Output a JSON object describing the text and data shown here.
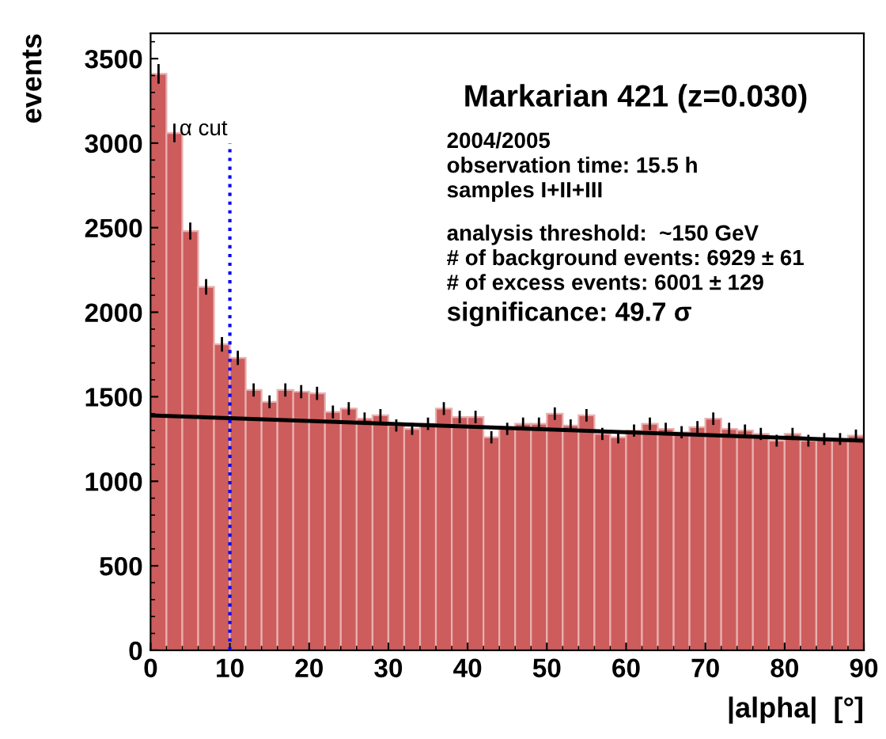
{
  "chart_data": {
    "type": "histogram",
    "title": "Markarian 421 (z=0.030)",
    "xlabel": "|alpha|  [°]",
    "ylabel": "events",
    "bins": [
      0,
      2,
      4,
      6,
      8,
      10,
      12,
      14,
      16,
      18,
      20,
      22,
      24,
      26,
      28,
      30,
      32,
      34,
      36,
      38,
      40,
      42,
      44,
      46,
      48,
      50,
      52,
      54,
      56,
      58,
      60,
      62,
      64,
      66,
      68,
      70,
      72,
      74,
      76,
      78,
      80,
      82,
      84,
      86,
      88,
      90
    ],
    "series": [
      {
        "color": "#cd5c5c",
        "values": [
          3410,
          3060,
          2480,
          2150,
          1810,
          1730,
          1540,
          1470,
          1540,
          1530,
          1520,
          1410,
          1430,
          1370,
          1390,
          1330,
          1310,
          1340,
          1430,
          1380,
          1380,
          1260,
          1310,
          1340,
          1340,
          1400,
          1330,
          1390,
          1280,
          1260,
          1300,
          1340,
          1310,
          1290,
          1320,
          1370,
          1310,
          1300,
          1280,
          1240,
          1280,
          1240,
          1250,
          1250,
          1270
        ],
        "errors": [
          58,
          55,
          50,
          46,
          43,
          42,
          39,
          38,
          39,
          39,
          39,
          38,
          38,
          37,
          37,
          36,
          36,
          37,
          38,
          37,
          37,
          36,
          36,
          37,
          37,
          37,
          36,
          37,
          36,
          36,
          36,
          37,
          36,
          36,
          36,
          37,
          36,
          36,
          36,
          35,
          36,
          35,
          35,
          35,
          36
        ]
      },
      {
        "type": "line",
        "color": "#000000",
        "x": [
          0,
          90
        ],
        "values": [
          1390,
          1240
        ]
      }
    ],
    "xlim": [
      0,
      90
    ],
    "xticks": [
      0,
      10,
      20,
      30,
      40,
      50,
      60,
      70,
      80,
      90
    ],
    "ylim": [
      0,
      3650
    ],
    "yticks": [
      0,
      500,
      1000,
      1500,
      2000,
      2500,
      3000,
      3500
    ],
    "ref_lines": [
      {
        "axis": "x",
        "value": 10,
        "label": "α cut",
        "color": "#0000ff",
        "line_style": "dotted"
      }
    ],
    "annotations": [
      "2004/2005",
      "observation time: 15.5 h",
      "samples I+II+III",
      "analysis threshold:  ~150 GeV",
      "# of background events: 6929 ± 61",
      "# of excess events: 6001 ± 129",
      "significance: 49.7 σ"
    ],
    "grid": false
  }
}
